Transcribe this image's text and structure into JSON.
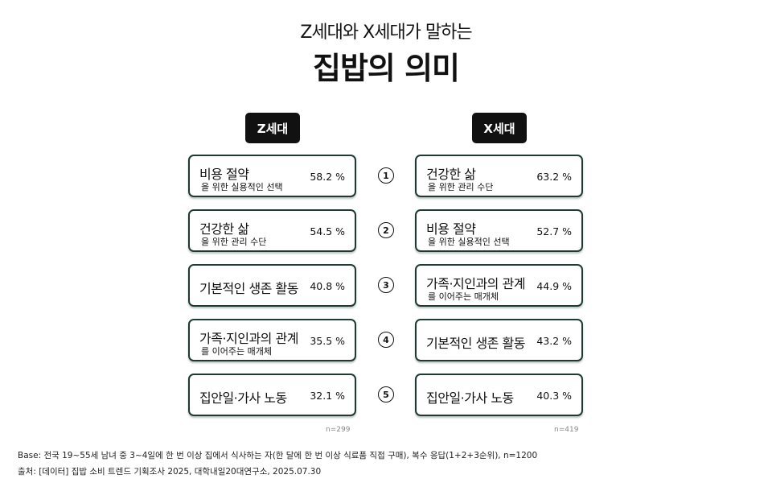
{
  "subtitle": "Z세대와 X세대가 말하는",
  "title": "집밥의 의미",
  "chart_data": {
    "type": "table",
    "groups": [
      {
        "name": "Z세대",
        "n": "n=299",
        "items": [
          {
            "label": "비용 절약",
            "sub": "을 위한 실용적인 선택",
            "value": 58.2,
            "value_text": "58.2 %"
          },
          {
            "label": "건강한 삶",
            "sub": "을 위한 관리 수단",
            "value": 54.5,
            "value_text": "54.5 %"
          },
          {
            "label": "기본적인 생존 활동",
            "sub": "",
            "value": 40.8,
            "value_text": "40.8 %"
          },
          {
            "label": "가족·지인과의 관계",
            "sub": "를 이어주는 매개체",
            "value": 35.5,
            "value_text": "35.5 %"
          },
          {
            "label": "집안일·가사 노동",
            "sub": "",
            "value": 32.1,
            "value_text": "32.1 %"
          }
        ]
      },
      {
        "name": "X세대",
        "n": "n=419",
        "items": [
          {
            "label": "건강한 삶",
            "sub": "을 위한 관리 수단",
            "value": 63.2,
            "value_text": "63.2 %"
          },
          {
            "label": "비용 절약",
            "sub": "을 위한 실용적인 선택",
            "value": 52.7,
            "value_text": "52.7 %"
          },
          {
            "label": "가족·지인과의 관계",
            "sub": "를 이어주는 매개체",
            "value": 44.9,
            "value_text": "44.9 %"
          },
          {
            "label": "기본적인 생존 활동",
            "sub": "",
            "value": 43.2,
            "value_text": "43.2 %"
          },
          {
            "label": "집안일·가사 노동",
            "sub": "",
            "value": 40.3,
            "value_text": "40.3 %"
          }
        ]
      }
    ],
    "ranks": [
      "①",
      "②",
      "③",
      "④",
      "⑤"
    ]
  },
  "notes": {
    "base": "Base: 전국 19~55세 남녀 중 3~4일에 한 번 이상 집에서 식사하는 자(한 달에 한 번 이상 식료품 직접 구매), 복수 응답(1+2+3순위), n=1200",
    "source": "출처: [데이터] 집밥 소비 트렌드 기획조사 2025, 대학내일20대연구소, 2025.07.30"
  }
}
